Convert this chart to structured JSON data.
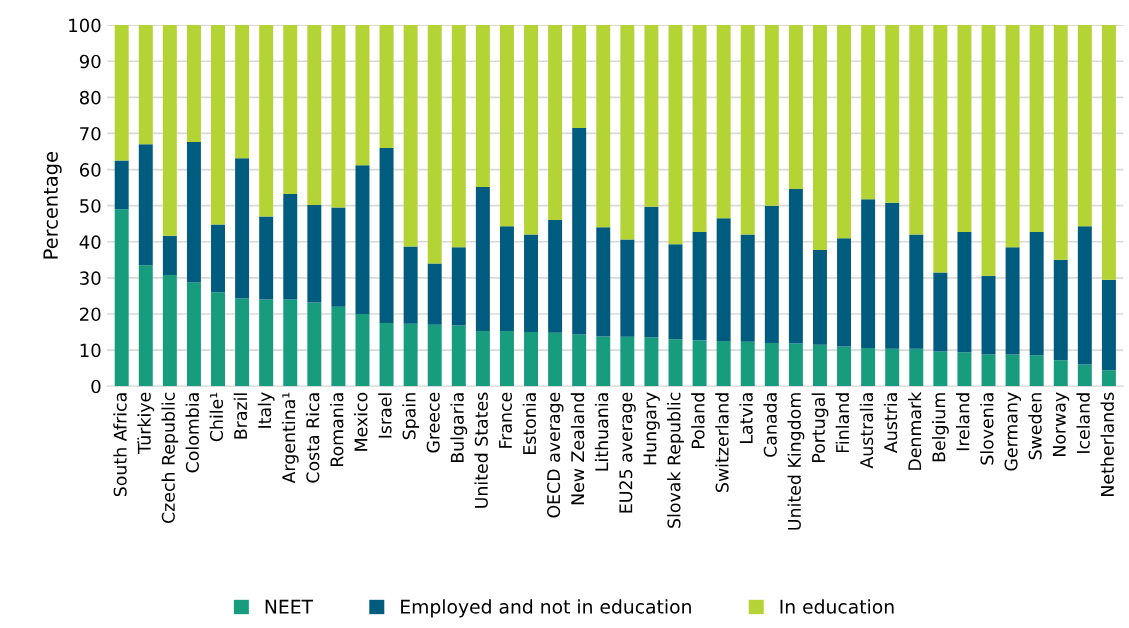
{
  "chart_data": {
    "type": "bar",
    "stacked": true,
    "ylabel": "Percentage",
    "categories": [
      "South Africa",
      "Türkiye",
      "Czech Republic",
      "Colombia",
      "Chile¹",
      "Brazil",
      "Italy",
      "Argentina¹",
      "Costa Rica",
      "Romania",
      "Mexico",
      "Israel",
      "Spain",
      "Greece",
      "Bulgaria",
      "United States",
      "France",
      "Estonia",
      "OECD average",
      "New Zealand",
      "Lithuania",
      "EU25 average",
      "Hungary",
      "Slovak Republic",
      "Poland",
      "Switzerland",
      "Latvia",
      "Canada",
      "United Kingdom",
      "Portugal",
      "Finland",
      "Australia",
      "Austria",
      "Denmark",
      "Belgium",
      "Ireland",
      "Slovenia",
      "Germany",
      "Sweden",
      "Norway",
      "Iceland",
      "Netherlands"
    ],
    "series": [
      {
        "name": "NEET",
        "color": "#179c7d",
        "values": [
          49,
          33.5,
          30.8,
          28.7,
          26,
          24.3,
          24,
          24,
          23.2,
          22,
          20,
          17.5,
          17.3,
          17,
          16.8,
          15.3,
          15.3,
          15,
          14.8,
          14.3,
          13.8,
          13.7,
          13.5,
          13,
          12.7,
          12.5,
          12.3,
          12,
          11.8,
          11.5,
          11,
          10.6,
          10.4,
          10.4,
          9.6,
          9.4,
          8.8,
          8.8,
          8.6,
          7.2,
          6,
          4.4
        ]
      },
      {
        "name": "Employed and not in education",
        "color": "#005c7f",
        "values": [
          13.5,
          33.5,
          10.9,
          38.9,
          18.8,
          38.8,
          23,
          29.2,
          27,
          27.5,
          41.2,
          48.5,
          21.4,
          17,
          21.7,
          39.9,
          29,
          27,
          31.2,
          57.2,
          30.2,
          26.9,
          36.2,
          26.3,
          30,
          34,
          29.7,
          38,
          42.8,
          26.2,
          30,
          41.2,
          40.4,
          31.6,
          21.9,
          33.3,
          21.8,
          29.7,
          34.1,
          27.8,
          38.3,
          25.1
        ]
      },
      {
        "name": "In education",
        "color": "#b4d334",
        "values": [
          37.5,
          33,
          58.3,
          32.4,
          55.2,
          36.9,
          53,
          46.8,
          49.8,
          50.5,
          38.8,
          34,
          61.3,
          66,
          61.5,
          44.8,
          55.7,
          58,
          54,
          28.5,
          56,
          59.4,
          50.3,
          60.7,
          57.3,
          53.5,
          58,
          50,
          45.4,
          62.3,
          59,
          48.2,
          49.2,
          58,
          68.5,
          57.3,
          69.4,
          61.5,
          57.3,
          65,
          55.7,
          70.5
        ]
      }
    ],
    "ylim": [
      0,
      100
    ],
    "yticks": [
      0,
      10,
      20,
      30,
      40,
      50,
      60,
      70,
      80,
      90,
      100
    ],
    "grid": "y",
    "legend": "bottom"
  }
}
